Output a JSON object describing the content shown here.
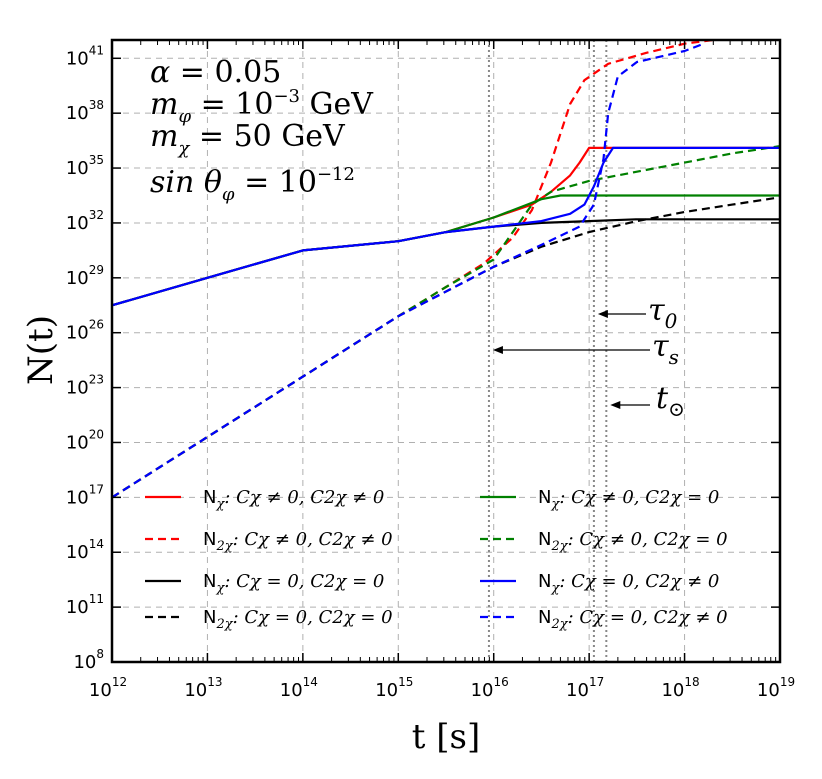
{
  "chart_data": {
    "type": "line",
    "title": "",
    "xlabel": "t [s]",
    "ylabel": "N(t)",
    "xscale": "log",
    "yscale": "log",
    "x_log_range": [
      12,
      19
    ],
    "y_log_range": [
      8,
      42
    ],
    "x_tick_exponents": [
      "12",
      "13",
      "14",
      "15",
      "16",
      "17",
      "18",
      "19"
    ],
    "y_tick_exponents": [
      "8",
      "11",
      "14",
      "17",
      "20",
      "23",
      "26",
      "29",
      "32",
      "35",
      "38",
      "41"
    ],
    "tick_base": "10",
    "grid": true,
    "parameters": [
      {
        "lhs": "α",
        "rel": "=",
        "rhs": "0.05"
      },
      {
        "lhs": "m",
        "sub": "φ",
        "rel": "=",
        "rhs": "10",
        "sup": "−3",
        "unit": "GeV"
      },
      {
        "lhs": "m",
        "sub": "χ",
        "rel": "=",
        "rhs": "50",
        "unit": "GeV"
      },
      {
        "lhs": "sin θ",
        "sub": "φ",
        "rel": "=",
        "rhs": "10",
        "sup": "−12"
      }
    ],
    "vlines": [
      {
        "name": "τ_s",
        "x_log": 15.95,
        "label": "τ",
        "sub": "s"
      },
      {
        "name": "τ_0",
        "x_log": 17.05,
        "label": "τ",
        "sub": "0"
      },
      {
        "name": "t_⊙",
        "x_log": 17.18,
        "label": "t",
        "sub": "⊙"
      }
    ],
    "series": [
      {
        "name": "Nχ: Cχ≠0, C2χ≠0",
        "color": "#ff0000",
        "style": "solid",
        "x_log": [
          12,
          13,
          14,
          15,
          15.5,
          16,
          16.4,
          16.6,
          16.8,
          16.9,
          17.0,
          19
        ],
        "y_log": [
          27.5,
          29.0,
          30.5,
          31.0,
          31.5,
          32.3,
          33.0,
          33.7,
          34.6,
          35.3,
          36.1,
          36.1
        ]
      },
      {
        "name": "N2χ: Cχ≠0, C2χ≠0",
        "color": "#ff0000",
        "style": "dashed",
        "x_log": [
          12,
          13,
          14,
          15,
          15.5,
          15.9,
          16.2,
          16.4,
          16.6,
          16.8,
          16.95,
          17.2,
          17.6,
          18.0,
          18.3
        ],
        "y_log": [
          17.0,
          20.3,
          23.6,
          26.9,
          28.5,
          29.8,
          31.2,
          32.7,
          35.3,
          38.5,
          39.8,
          40.7,
          41.3,
          41.8,
          42.0
        ]
      },
      {
        "name": "Nχ: Cχ=0, C2χ=0",
        "color": "#000000",
        "style": "solid",
        "x_log": [
          12,
          13,
          14,
          15,
          15.5,
          16.0,
          16.5,
          17.0,
          17.5,
          19
        ],
        "y_log": [
          27.5,
          29.0,
          30.5,
          31.0,
          31.5,
          31.8,
          32.0,
          32.1,
          32.2,
          32.2
        ]
      },
      {
        "name": "N2χ: Cχ=0, C2χ=0",
        "color": "#000000",
        "style": "dashed",
        "x_log": [
          12,
          13,
          14,
          15,
          16.0,
          16.5,
          17.0,
          17.5,
          18.0,
          18.5,
          19
        ],
        "y_log": [
          17.0,
          20.3,
          23.6,
          26.9,
          29.6,
          30.7,
          31.5,
          32.1,
          32.6,
          33.0,
          33.4
        ]
      },
      {
        "name": "Nχ: Cχ≠0, C2χ=0",
        "color": "#008000",
        "style": "solid",
        "x_log": [
          12,
          13,
          14,
          15,
          15.5,
          16,
          16.3,
          16.5,
          16.7,
          17.0,
          19
        ],
        "y_log": [
          27.5,
          29.0,
          30.5,
          31.0,
          31.5,
          32.3,
          32.9,
          33.3,
          33.5,
          33.5,
          33.5
        ]
      },
      {
        "name": "N2χ: Cχ≠0, C2χ=0",
        "color": "#008000",
        "style": "dashed",
        "x_log": [
          12,
          13,
          14,
          15,
          15.5,
          16.0,
          16.2,
          16.4,
          16.6,
          17.0,
          17.5,
          18.0,
          18.5,
          19
        ],
        "y_log": [
          17.0,
          20.3,
          23.6,
          26.9,
          28.5,
          30.0,
          31.5,
          33.0,
          33.7,
          34.3,
          34.8,
          35.3,
          35.8,
          36.2
        ]
      },
      {
        "name": "Nχ: Cχ=0, C2χ≠0",
        "color": "#0000ff",
        "style": "solid",
        "x_log": [
          12,
          13,
          14,
          15,
          15.5,
          16.0,
          16.5,
          16.8,
          16.95,
          17.05,
          17.15,
          17.25,
          19
        ],
        "y_log": [
          27.5,
          29.0,
          30.5,
          31.0,
          31.5,
          31.8,
          32.1,
          32.5,
          33.0,
          34.0,
          35.3,
          36.1,
          36.1
        ]
      },
      {
        "name": "N2χ: Cχ=0, C2χ≠0",
        "color": "#0000ff",
        "style": "dashed",
        "x_log": [
          12,
          13,
          14,
          15,
          16.0,
          16.5,
          16.9,
          17.05,
          17.15,
          17.2,
          17.3,
          17.5,
          18.0,
          18.2
        ],
        "y_log": [
          17.0,
          20.3,
          23.6,
          26.9,
          29.6,
          30.8,
          31.8,
          33.0,
          35.5,
          38.0,
          40.0,
          40.8,
          41.4,
          41.8
        ]
      }
    ],
    "legend": [
      {
        "prefix": "N",
        "prefix_sub": "χ",
        "rest": ": Cχ ≠ 0, C2χ ≠ 0",
        "series_index": 0
      },
      {
        "prefix": "N",
        "prefix_sub": "2χ",
        "rest": ": Cχ ≠ 0, C2χ ≠ 0",
        "series_index": 1
      },
      {
        "prefix": "N",
        "prefix_sub": "χ",
        "rest": ": Cχ = 0, C2χ = 0",
        "series_index": 2
      },
      {
        "prefix": "N",
        "prefix_sub": "2χ",
        "rest": ": Cχ = 0, C2χ = 0",
        "series_index": 3
      },
      {
        "prefix": "N",
        "prefix_sub": "χ",
        "rest": ": Cχ ≠ 0, C2χ = 0",
        "series_index": 4
      },
      {
        "prefix": "N",
        "prefix_sub": "2χ",
        "rest": ": Cχ ≠ 0, C2χ = 0",
        "series_index": 5
      },
      {
        "prefix": "N",
        "prefix_sub": "χ",
        "rest": ": Cχ = 0, C2χ ≠ 0",
        "series_index": 6
      },
      {
        "prefix": "N",
        "prefix_sub": "2χ",
        "rest": ": Cχ = 0, C2χ ≠ 0",
        "series_index": 7
      }
    ],
    "legend_placement": "lower-right"
  }
}
